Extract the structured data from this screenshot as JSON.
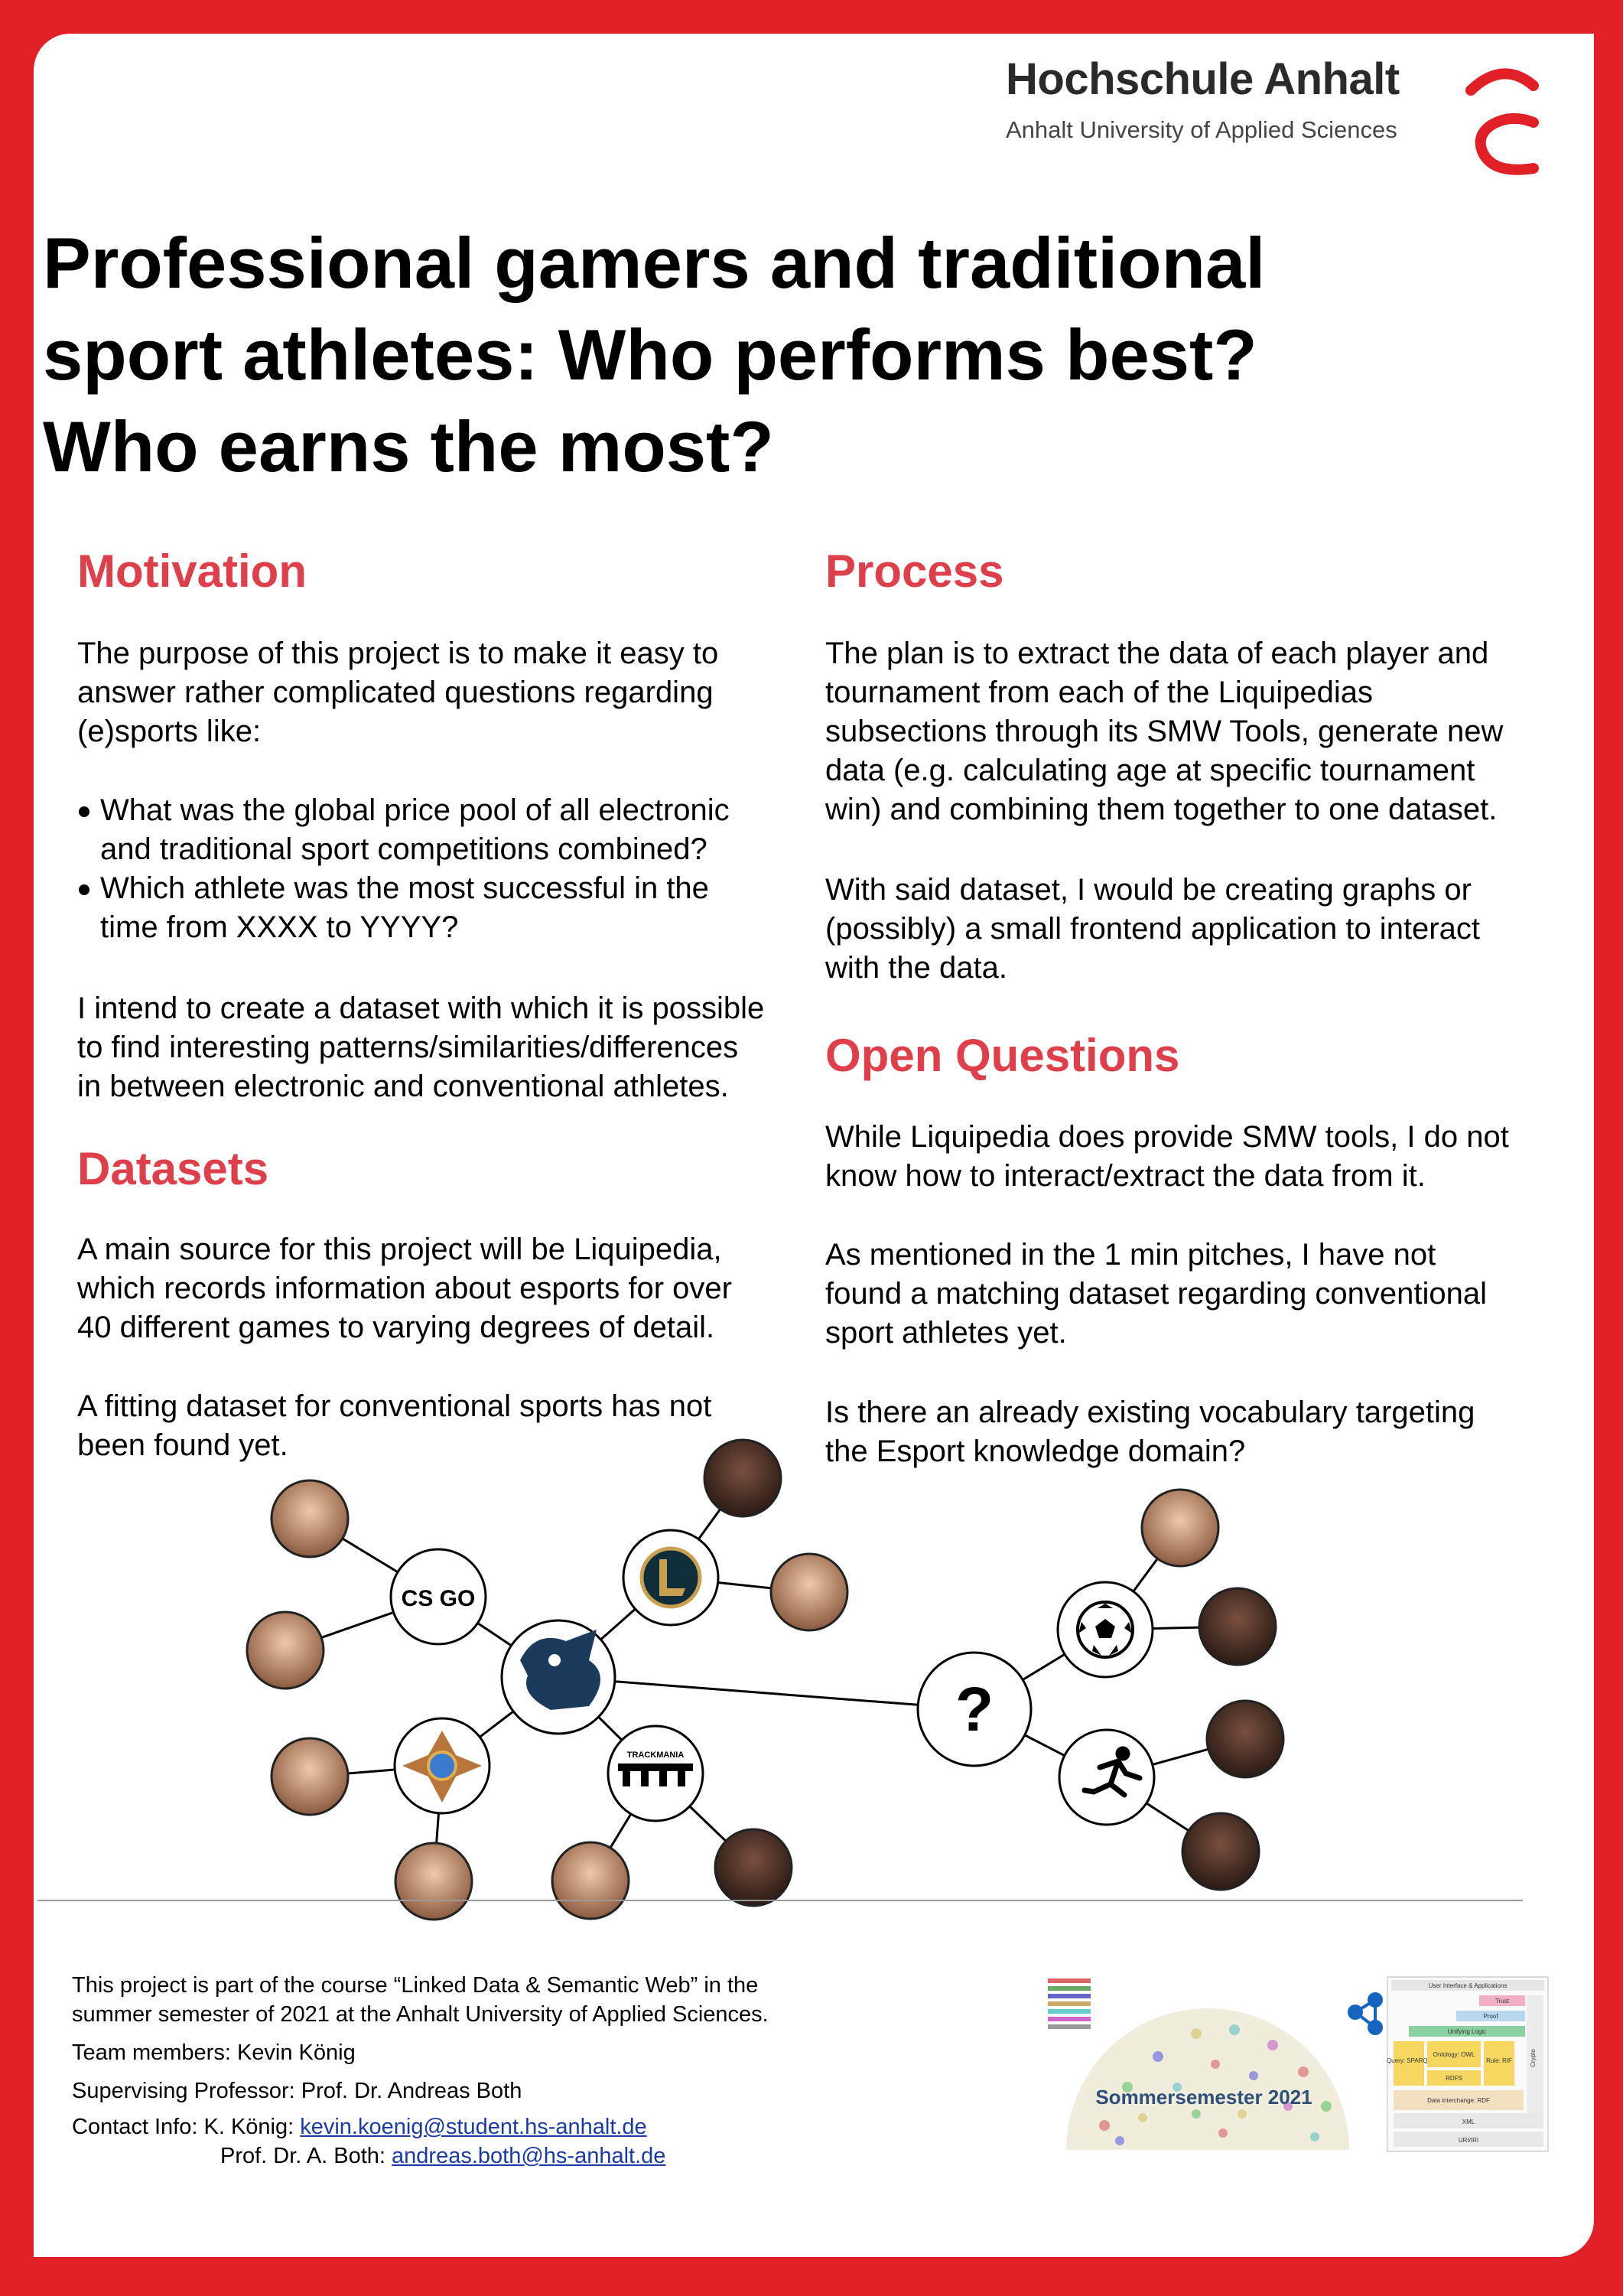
{
  "header": {
    "university_name": "Hochschule Anhalt",
    "university_sub": "Anhalt University of Applied Sciences"
  },
  "title_lines": [
    "Professional gamers and traditional",
    "sport athletes: Who performs best?",
    "Who earns the most?"
  ],
  "motivation": {
    "heading": "Motivation",
    "intro_lines": [
      "The purpose of this project is to make it easy to",
      "answer rather complicated questions regarding",
      "(e)sports like:"
    ],
    "bullets": [
      [
        "What was the global price pool of all electronic",
        "and traditional sport competitions combined?"
      ],
      [
        "Which athlete was the most successful in the",
        "time from XXXX to YYYY?"
      ]
    ],
    "closing_lines": [
      "I intend to create a dataset with which it is possible",
      "to find interesting patterns/similarities/differences",
      "in between electronic and conventional athletes."
    ]
  },
  "datasets": {
    "heading": "Datasets",
    "para1_lines": [
      "A main source for this project will be Liquipedia,",
      "which records information about esports for over",
      "40 different games to varying degrees of detail."
    ],
    "para2_lines": [
      "A fitting dataset for conventional sports has not",
      "been found yet."
    ]
  },
  "process": {
    "heading": "Process",
    "para1_lines": [
      "The plan is to extract the data of each player and",
      "tournament from each of the Liquipedias",
      "subsections through its SMW Tools, generate new",
      "data (e.g. calculating age at specific tournament",
      "win) and combining them together to one dataset."
    ],
    "para2_lines": [
      "With said dataset, I would be creating graphs or",
      "(possibly) a small frontend application to interact",
      "with the data."
    ]
  },
  "open_questions": {
    "heading": "Open Questions",
    "para1_lines": [
      "While Liquipedia does provide SMW tools, I do not",
      "know how to interact/extract the data from it."
    ],
    "para2_lines": [
      "As mentioned in the 1 min pitches, I have not",
      "found a matching dataset regarding conventional",
      "sport athletes yet."
    ],
    "para3_lines": [
      "Is there an already existing vocabulary targeting",
      "the Esport knowledge domain?"
    ]
  },
  "diagram": {
    "csgo_label": "CS GO",
    "trackmania_label": "TRACKMANIA",
    "question_mark": "?"
  },
  "footer": {
    "course_lines": [
      "This project is part of the course “Linked Data & Semantic Web” in the",
      "summer semester of 2021 at the Anhalt University of Applied Sciences."
    ],
    "team": "Team members: Kevin König",
    "supervisor": "Supervising Professor: Prof. Dr. Andreas Both",
    "contact_label": "Contact Info: K. König: ",
    "contact_email1": "kevin.koenig@student.hs-anhalt.de",
    "contact2_label": "Prof. Dr. A. Both: ",
    "contact_email2": "andreas.both@hs-anhalt.de",
    "badge_text": "Sommersemester 2021",
    "stack": {
      "ui": "User Interface & Applications",
      "trust": "Trust",
      "proof": "Proof",
      "logic": "Unifying Logic",
      "query": "Query: SPARQL",
      "ontology": "Ontology: OWL",
      "rule": "Rule: RIF",
      "rdfs": "RDFS",
      "crypto": "Crypto",
      "interchange": "Data interchange: RDF",
      "xml": "XML",
      "uri": "URI/IRI"
    }
  },
  "colors": {
    "brand_red": "#e11f26",
    "heading_red": "#df3f4a"
  }
}
